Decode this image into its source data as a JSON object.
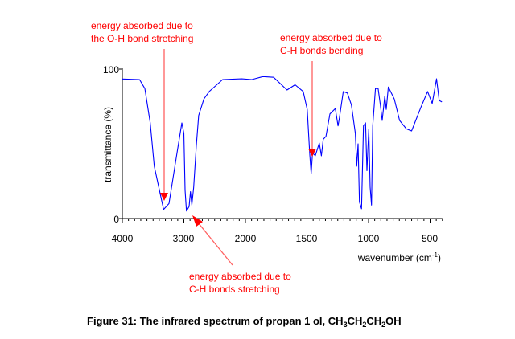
{
  "chart_data": {
    "type": "line",
    "title": "",
    "xlabel": "wavenumber (cm",
    "xlabel_sup": "-1",
    "xlabel_end": ")",
    "ylabel": "transmittance (%)",
    "xlim": [
      4000,
      400
    ],
    "x_scale_change_at": 2000,
    "ylim": [
      0,
      100
    ],
    "x_ticks": [
      4000,
      3000,
      2000,
      1500,
      1000,
      500
    ],
    "x_tick_labels": [
      "4000",
      "3000",
      "2000",
      "1500",
      "1000",
      "500"
    ],
    "y_ticks": [
      0,
      100
    ],
    "y_tick_labels": [
      "0",
      "100"
    ],
    "grid": false,
    "series": [
      {
        "color": "#0000ff",
        "x": [
          4000,
          3720,
          3634,
          3547,
          3481,
          3330,
          3242,
          3111,
          3033,
          3000,
          2980,
          2958,
          2915,
          2893,
          2870,
          2840,
          2797,
          2760,
          2675,
          2588,
          2370,
          2060,
          1948,
          1858,
          1771,
          1662,
          1597,
          1531,
          1498,
          1477,
          1466,
          1455,
          1433,
          1400,
          1383,
          1368,
          1346,
          1314,
          1270,
          1248,
          1237,
          1205,
          1172,
          1139,
          1107,
          1096,
          1085,
          1074,
          1057,
          1041,
          1024,
          1013,
          998,
          987,
          976,
          966,
          944,
          922,
          904,
          889,
          868,
          856,
          839,
          791,
          748,
          693,
          650,
          574,
          520,
          483,
          448,
          426,
          404
        ],
        "y": [
          93.4,
          93,
          87,
          64,
          35,
          6,
          10,
          44,
          64,
          57,
          19,
          5,
          8,
          18,
          9,
          21,
          49,
          69,
          80,
          85,
          93,
          93.5,
          93,
          95,
          94.5,
          86,
          89.5,
          85,
          73,
          42.5,
          30,
          44,
          42,
          50.5,
          42,
          53,
          55,
          70,
          73.6,
          62,
          67,
          85,
          84,
          76,
          57,
          35,
          50,
          11,
          6.5,
          62,
          64,
          32,
          60,
          21,
          9,
          62,
          87,
          87,
          76,
          65.6,
          82,
          73,
          88,
          80,
          65.6,
          60,
          58.6,
          74.6,
          85,
          77,
          93.5,
          79,
          78
        ]
      }
    ],
    "annotations": [
      {
        "lines": [
          "energy absorbed due to",
          "the O-H bond stretching"
        ],
        "points_to": 3330,
        "color": "#ff0000"
      },
      {
        "lines": [
          "energy absorbed due to",
          "C-H bonds bending"
        ],
        "points_to": 1466,
        "color": "#ff0000"
      },
      {
        "lines": [
          "energy absorbed due to",
          "C-H bonds stretching"
        ],
        "points_to": 2900,
        "color": "#ff0000"
      }
    ]
  },
  "caption": {
    "text": "Figure 31: The infrared spectrum of propan 1 ol, ",
    "formula": [
      "CH",
      "3",
      "CH",
      "2",
      "CH",
      "2",
      "OH"
    ]
  }
}
